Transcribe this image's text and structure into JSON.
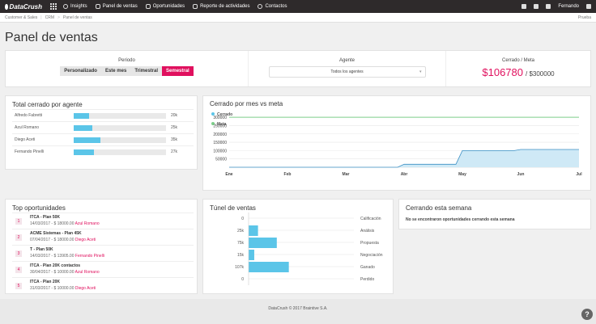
{
  "topbar": {
    "logo": "DataCrush",
    "nav": [
      {
        "label": "Insights",
        "icon": "lightbulb-icon"
      },
      {
        "label": "Panel de ventas",
        "icon": "dashboard-icon"
      },
      {
        "label": "Oportunidades",
        "icon": "folder-icon"
      },
      {
        "label": "Reporte de actividades",
        "icon": "bar-chart-icon"
      },
      {
        "label": "Contactos",
        "icon": "person-icon"
      }
    ],
    "user": "Fernando"
  },
  "breadcrumb": {
    "items": [
      "Customer & Sales",
      "CRM",
      "Panel de ventas"
    ],
    "right": "Prueba"
  },
  "page_title": "Panel de ventas",
  "filters": {
    "period_label": "Periodo",
    "period_options": [
      "Personalizado",
      "Este mes",
      "Trimestral",
      "Semestral"
    ],
    "period_selected": "Semestral",
    "agent_label": "Agente",
    "agent_value": "Todos los agentes",
    "closed_label": "Cerrado / Meta",
    "closed_value": "$106780",
    "meta_value": "/ $300000"
  },
  "agents": {
    "title": "Total cerrado por agente",
    "rows": [
      {
        "name": "Alfredo Fabretti",
        "value": "20k",
        "fraction": 0.17
      },
      {
        "name": "Azul Romano",
        "value": "25k",
        "fraction": 0.2
      },
      {
        "name": "Diego Aceti",
        "value": "35k",
        "fraction": 0.29
      },
      {
        "name": "Fernando Pinelli",
        "value": "27k",
        "fraction": 0.22
      }
    ]
  },
  "monthly": {
    "title": "Cerrado por mes vs meta",
    "chart_data": {
      "type": "line",
      "x": [
        "Ene",
        "Feb",
        "Mar",
        "Abr",
        "May",
        "Jun",
        "Jul"
      ],
      "series": [
        {
          "name": "Cerrado",
          "values": [
            0,
            0,
            0,
            18000,
            100000,
            106780,
            106780
          ]
        },
        {
          "name": "Meta",
          "values": [
            300000,
            300000,
            300000,
            300000,
            300000,
            300000,
            300000
          ]
        }
      ],
      "yticks": [
        "300000",
        "250000",
        "200000",
        "150000",
        "100000",
        "50000"
      ],
      "ylim": [
        0,
        320000
      ]
    }
  },
  "opportunities": {
    "title": "Top oportunidades",
    "items": [
      {
        "n": "1",
        "title": "ITCA - Plan 50K",
        "detail": "14/03/2017 - $ 18000.00",
        "owner": "Azul Romano"
      },
      {
        "n": "2",
        "title": "ACME Sistemas - Plan 45K",
        "detail": "07/04/2017 - $ 18000.00",
        "owner": "Diego Aceti"
      },
      {
        "n": "3",
        "title": "T - Plan 50K",
        "detail": "14/03/2017 - $ 13905.00",
        "owner": "Fernando Pinelli"
      },
      {
        "n": "4",
        "title": "ITCA - Plan 20K contactos",
        "detail": "30/04/2017 - $ 10000.00",
        "owner": "Azul Romano"
      },
      {
        "n": "5",
        "title": "ITCA - Plan 20K",
        "detail": "31/03/2017 - $ 10000.00",
        "owner": "Diego Aceti"
      }
    ]
  },
  "funnel": {
    "title": "Túnel de ventas",
    "chart_data": {
      "type": "bar",
      "categories": [
        "Calificación",
        "Análisis",
        "Propuesta",
        "Negociación",
        "Ganado",
        "Perdido"
      ],
      "values": [
        0,
        25,
        75,
        15,
        107,
        0
      ],
      "labels": [
        "0",
        "25k",
        "75k",
        "15k",
        "107k",
        "0"
      ],
      "xlim": [
        0,
        280
      ]
    }
  },
  "closing": {
    "title": "Cerrando esta semana",
    "empty": "No se encontraron oportunidades cerrando esta semana"
  },
  "footer": "DataCrush © 2017 Braintive S.A.",
  "help": "?"
}
